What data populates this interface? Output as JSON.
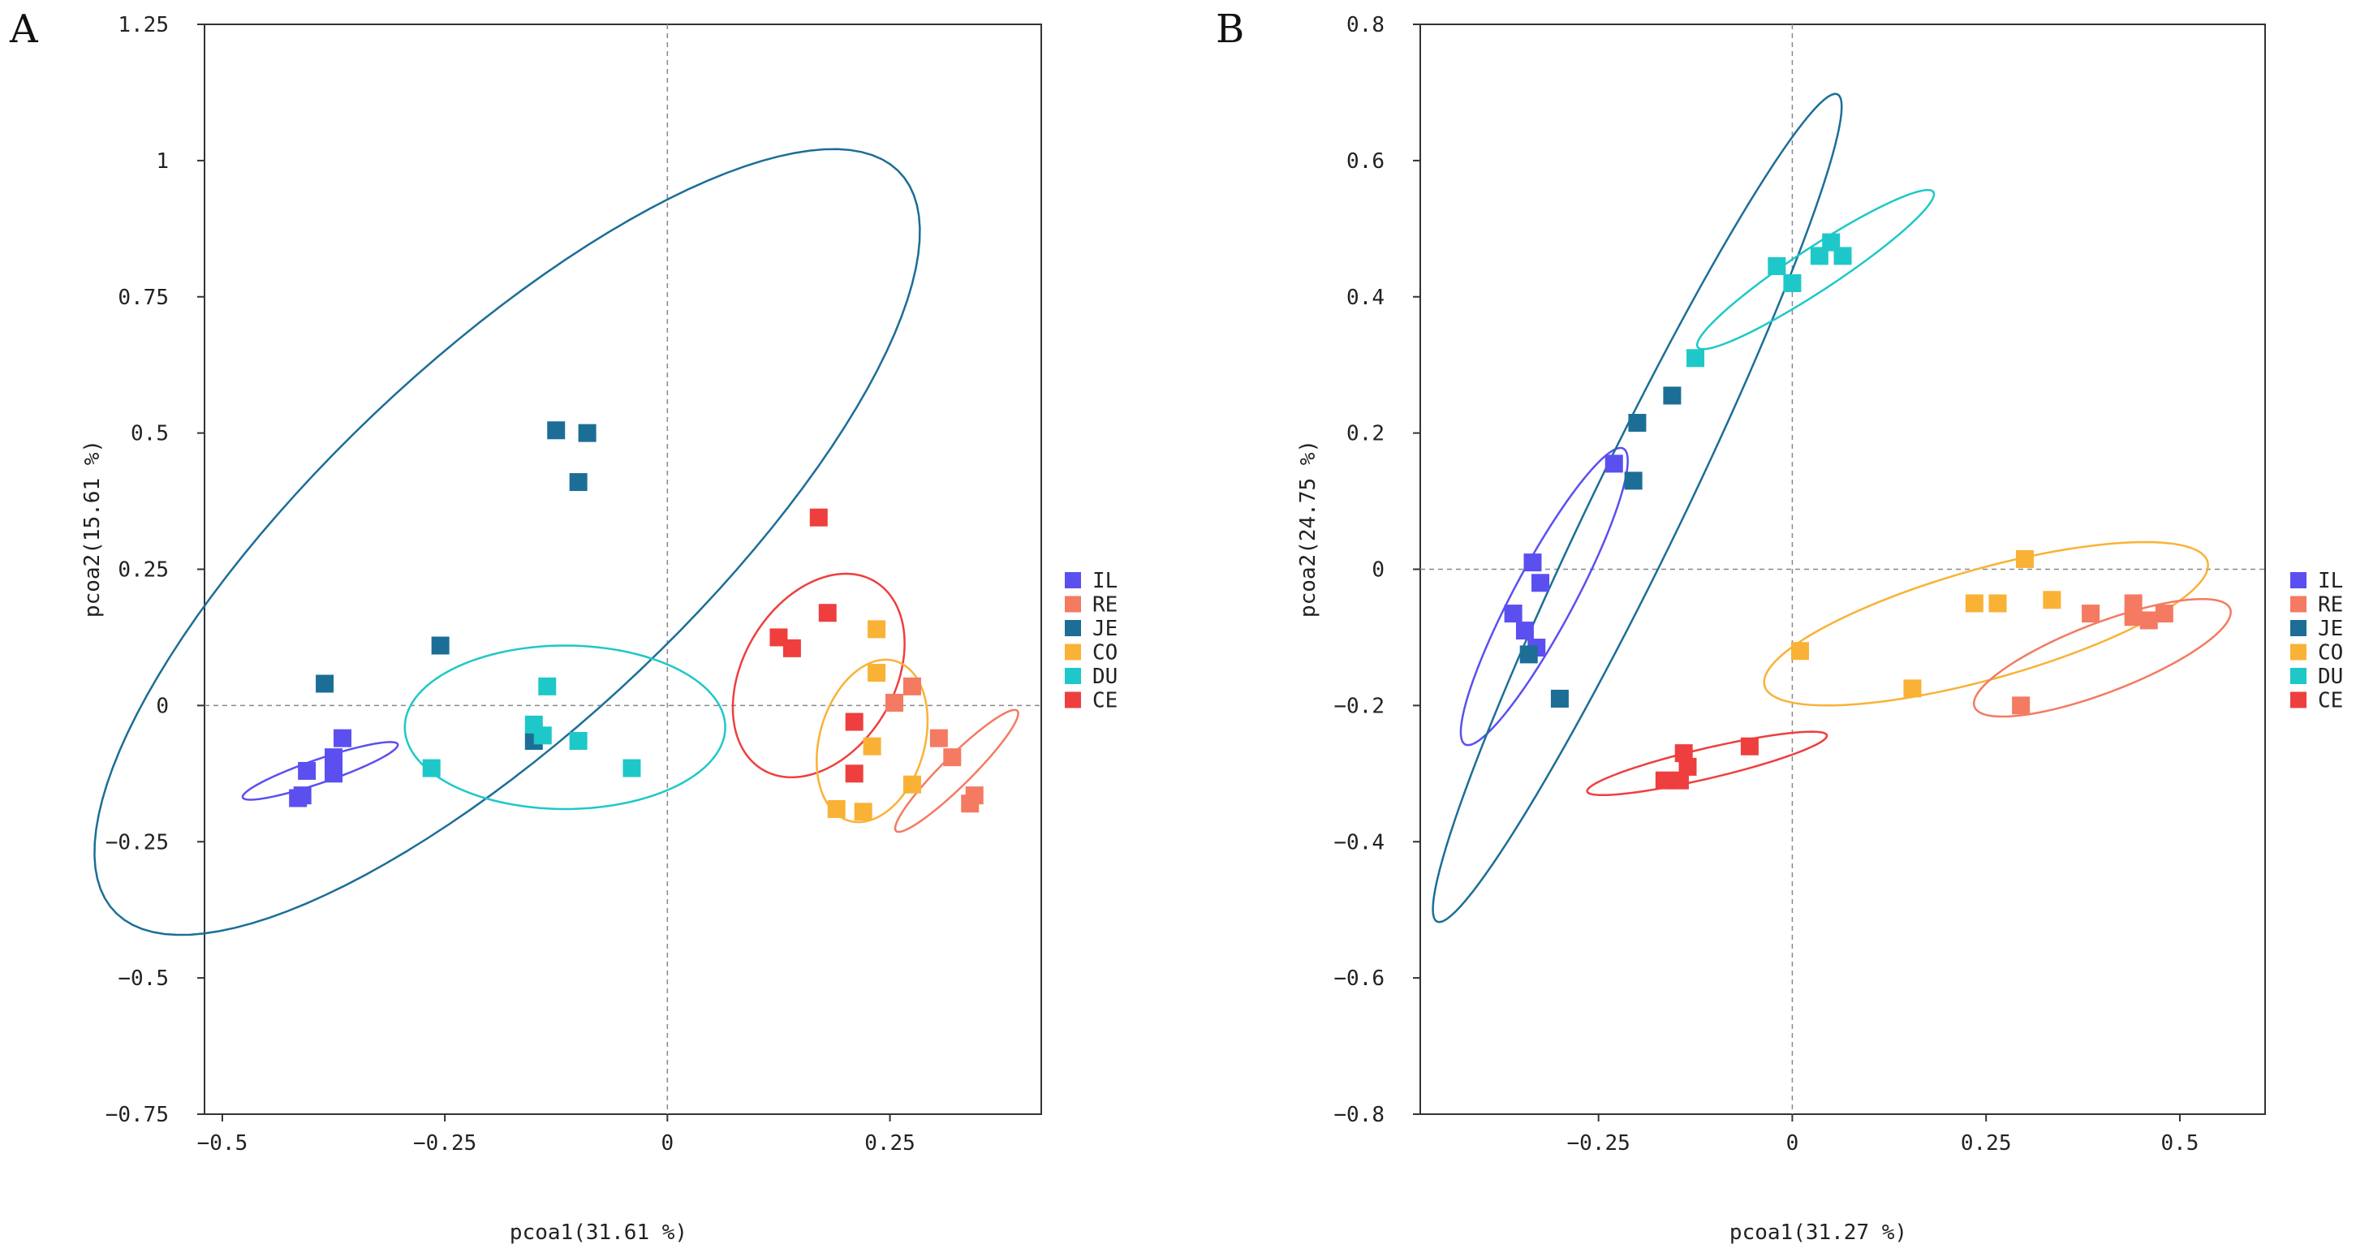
{
  "chart_data": [
    {
      "type": "scatter",
      "panel": "A",
      "xlabel": "pcoa1(31.61 %)",
      "ylabel": "pcoa2(15.61 %)",
      "xlim": [
        -0.52,
        0.42
      ],
      "ylim": [
        -0.75,
        1.25
      ],
      "xticks": [
        -0.5,
        -0.25,
        0,
        0.25
      ],
      "xtick_labels": [
        "−0.5",
        "−0.25",
        "0",
        "0.25"
      ],
      "yticks": [
        -0.75,
        -0.5,
        -0.25,
        0,
        0.25,
        0.5,
        0.75,
        1,
        1.25
      ],
      "ytick_labels": [
        "−0.75",
        "−0.5",
        "−0.25",
        "0",
        "0.25",
        "0.5",
        "0.75",
        "1",
        "1.25"
      ],
      "reference_lines": {
        "x": 0,
        "y": 0
      },
      "legend": [
        "IL",
        "RE",
        "JE",
        "CO",
        "DU",
        "CE"
      ],
      "series": [
        {
          "name": "IL",
          "color": "#5b4ff0",
          "points": [
            [
              -0.415,
              -0.17
            ],
            [
              -0.41,
              -0.165
            ],
            [
              -0.405,
              -0.12
            ],
            [
              -0.375,
              -0.095
            ],
            [
              -0.375,
              -0.115
            ],
            [
              -0.375,
              -0.125
            ],
            [
              -0.365,
              -0.06
            ]
          ]
        },
        {
          "name": "RE",
          "color": "#f47a62",
          "points": [
            [
              0.255,
              0.005
            ],
            [
              0.275,
              0.035
            ],
            [
              0.305,
              -0.06
            ],
            [
              0.32,
              -0.095
            ],
            [
              0.34,
              -0.18
            ],
            [
              0.345,
              -0.165
            ]
          ]
        },
        {
          "name": "JE",
          "color": "#1c6e96",
          "points": [
            [
              -0.385,
              0.04
            ],
            [
              -0.255,
              0.11
            ],
            [
              -0.125,
              0.505
            ],
            [
              -0.09,
              0.5
            ],
            [
              -0.1,
              0.41
            ],
            [
              -0.15,
              -0.065
            ]
          ]
        },
        {
          "name": "CO",
          "color": "#f9b236",
          "points": [
            [
              0.235,
              0.14
            ],
            [
              0.235,
              0.06
            ],
            [
              0.23,
              -0.075
            ],
            [
              0.275,
              -0.145
            ],
            [
              0.19,
              -0.19
            ],
            [
              0.22,
              -0.195
            ]
          ]
        },
        {
          "name": "DU",
          "color": "#1ec8c8",
          "points": [
            [
              -0.265,
              -0.115
            ],
            [
              -0.15,
              -0.035
            ],
            [
              -0.14,
              -0.055
            ],
            [
              -0.135,
              0.035
            ],
            [
              -0.1,
              -0.065
            ],
            [
              -0.04,
              -0.115
            ]
          ]
        },
        {
          "name": "CE",
          "color": "#ee3f3e",
          "points": [
            [
              0.17,
              0.345
            ],
            [
              0.18,
              0.17
            ],
            [
              0.125,
              0.125
            ],
            [
              0.14,
              0.105
            ],
            [
              0.21,
              -0.03
            ],
            [
              0.21,
              -0.125
            ]
          ]
        }
      ],
      "ellipses": [
        {
          "name": "IL",
          "center": [
            -0.39,
            -0.12
          ],
          "rx": 0.1,
          "ry": 0.02,
          "angle_deg": 30
        },
        {
          "name": "JE",
          "center": [
            -0.18,
            0.3
          ],
          "rx": 0.82,
          "ry": 0.25,
          "angle_deg": 60
        },
        {
          "name": "DU",
          "center": [
            -0.115,
            -0.04
          ],
          "rx": 0.18,
          "ry": 0.15,
          "angle_deg": 0
        },
        {
          "name": "CE",
          "center": [
            0.17,
            0.055
          ],
          "rx": 0.19,
          "ry": 0.09,
          "angle_deg": 78
        },
        {
          "name": "CO",
          "center": [
            0.23,
            -0.065
          ],
          "rx": 0.15,
          "ry": 0.06,
          "angle_deg": 83
        },
        {
          "name": "RE",
          "center": [
            0.325,
            -0.12
          ],
          "rx": 0.13,
          "ry": 0.02,
          "angle_deg": 59
        }
      ]
    },
    {
      "type": "scatter",
      "panel": "B",
      "xlabel": "pcoa1(31.27 %)",
      "ylabel": "pcoa2(24.75 %)",
      "xlim": [
        -0.48,
        0.61
      ],
      "ylim": [
        -0.8,
        0.8
      ],
      "xticks": [
        -0.25,
        0,
        0.25,
        0.5
      ],
      "xtick_labels": [
        "−0.25",
        "0",
        "0.25",
        "0.5"
      ],
      "yticks": [
        -0.8,
        -0.6,
        -0.4,
        -0.2,
        0,
        0.2,
        0.4,
        0.6,
        0.8
      ],
      "ytick_labels": [
        "−0.8",
        "−0.6",
        "−0.4",
        "−0.2",
        "0",
        "0.2",
        "0.4",
        "0.6",
        "0.8"
      ],
      "reference_lines": {
        "x": 0,
        "y": 0
      },
      "legend": [
        "IL",
        "RE",
        "JE",
        "CO",
        "DU",
        "CE"
      ],
      "series": [
        {
          "name": "IL",
          "color": "#5b4ff0",
          "points": [
            [
              -0.23,
              0.155
            ],
            [
              -0.335,
              0.01
            ],
            [
              -0.325,
              -0.02
            ],
            [
              -0.36,
              -0.065
            ],
            [
              -0.345,
              -0.09
            ],
            [
              -0.33,
              -0.115
            ]
          ]
        },
        {
          "name": "RE",
          "color": "#f47a62",
          "points": [
            [
              0.295,
              -0.2
            ],
            [
              0.385,
              -0.065
            ],
            [
              0.44,
              -0.05
            ],
            [
              0.44,
              -0.07
            ],
            [
              0.46,
              -0.075
            ],
            [
              0.48,
              -0.065
            ]
          ]
        },
        {
          "name": "JE",
          "color": "#1c6e96",
          "points": [
            [
              -0.155,
              0.255
            ],
            [
              -0.2,
              0.215
            ],
            [
              -0.205,
              0.13
            ],
            [
              -0.34,
              -0.125
            ],
            [
              -0.3,
              -0.19
            ]
          ]
        },
        {
          "name": "CO",
          "color": "#f9b236",
          "points": [
            [
              0.01,
              -0.12
            ],
            [
              0.155,
              -0.175
            ],
            [
              0.235,
              -0.05
            ],
            [
              0.265,
              -0.05
            ],
            [
              0.3,
              0.015
            ],
            [
              0.335,
              -0.045
            ]
          ]
        },
        {
          "name": "DU",
          "color": "#1ec8c8",
          "points": [
            [
              -0.125,
              0.31
            ],
            [
              -0.02,
              0.445
            ],
            [
              0.0,
              0.42
            ],
            [
              0.035,
              0.46
            ],
            [
              0.05,
              0.48
            ],
            [
              0.065,
              0.46
            ]
          ]
        },
        {
          "name": "CE",
          "color": "#ee3f3e",
          "points": [
            [
              -0.165,
              -0.31
            ],
            [
              -0.145,
              -0.31
            ],
            [
              -0.14,
              -0.27
            ],
            [
              -0.135,
              -0.29
            ],
            [
              -0.055,
              -0.26
            ]
          ]
        }
      ],
      "ellipses": [
        {
          "name": "IL",
          "center": [
            -0.32,
            -0.04
          ],
          "rx": 0.24,
          "ry": 0.04,
          "angle_deg": 65
        },
        {
          "name": "JE",
          "center": [
            -0.2,
            0.09
          ],
          "rx": 0.66,
          "ry": 0.06,
          "angle_deg": 67
        },
        {
          "name": "DU",
          "center": [
            0.03,
            0.44
          ],
          "rx": 0.19,
          "ry": 0.03,
          "angle_deg": 37
        },
        {
          "name": "CO",
          "center": [
            0.25,
            -0.08
          ],
          "rx": 0.3,
          "ry": 0.08,
          "angle_deg": 18
        },
        {
          "name": "RE",
          "center": [
            0.4,
            -0.13
          ],
          "rx": 0.18,
          "ry": 0.05,
          "angle_deg": 24
        },
        {
          "name": "CE",
          "center": [
            -0.11,
            -0.285
          ],
          "rx": 0.16,
          "ry": 0.022,
          "angle_deg": 15
        }
      ]
    }
  ]
}
